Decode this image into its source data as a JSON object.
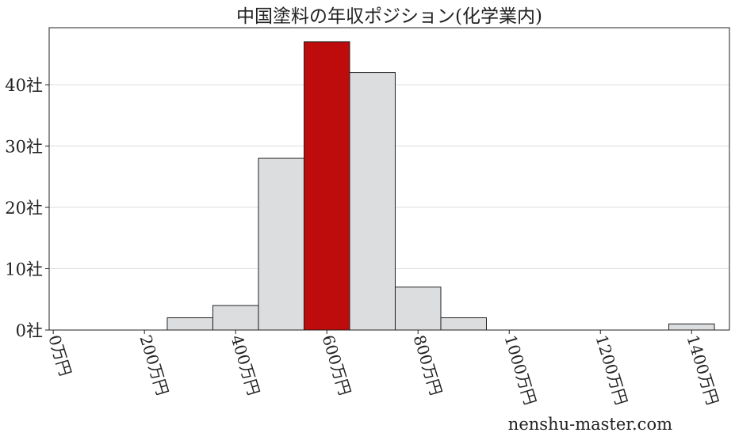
{
  "chart_data": {
    "type": "bar",
    "title": "中国塗料の年収ポジション(化学業内)",
    "xlabel": "",
    "ylabel": "",
    "bins": [
      {
        "from": 250,
        "to": 350,
        "value": 2
      },
      {
        "from": 350,
        "to": 450,
        "value": 4
      },
      {
        "from": 450,
        "to": 550,
        "value": 28
      },
      {
        "from": 550,
        "to": 650,
        "value": 47,
        "highlight": true
      },
      {
        "from": 650,
        "to": 750,
        "value": 42
      },
      {
        "from": 750,
        "to": 850,
        "value": 7
      },
      {
        "from": 850,
        "to": 950,
        "value": 2
      },
      {
        "from": 1350,
        "to": 1450,
        "value": 1
      }
    ],
    "xticks": [
      0,
      200,
      400,
      600,
      800,
      1000,
      1200,
      1400
    ],
    "xtick_labels": [
      "0万円",
      "200万円",
      "400万円",
      "600万円",
      "800万円",
      "1000万円",
      "1200万円",
      "1400万円"
    ],
    "yticks": [
      0,
      10,
      20,
      30,
      40
    ],
    "ytick_labels": [
      "0社",
      "10社",
      "20社",
      "30社",
      "40社"
    ],
    "xlim": [
      -9,
      1483
    ],
    "ylim": [
      0,
      49.3
    ],
    "grid": "horizontal",
    "colors": {
      "bar": "#dcdddf",
      "highlight": "#be0b0b",
      "edge": "#222222",
      "grid": "#dddddd"
    }
  },
  "watermark": "nenshu-master.com"
}
